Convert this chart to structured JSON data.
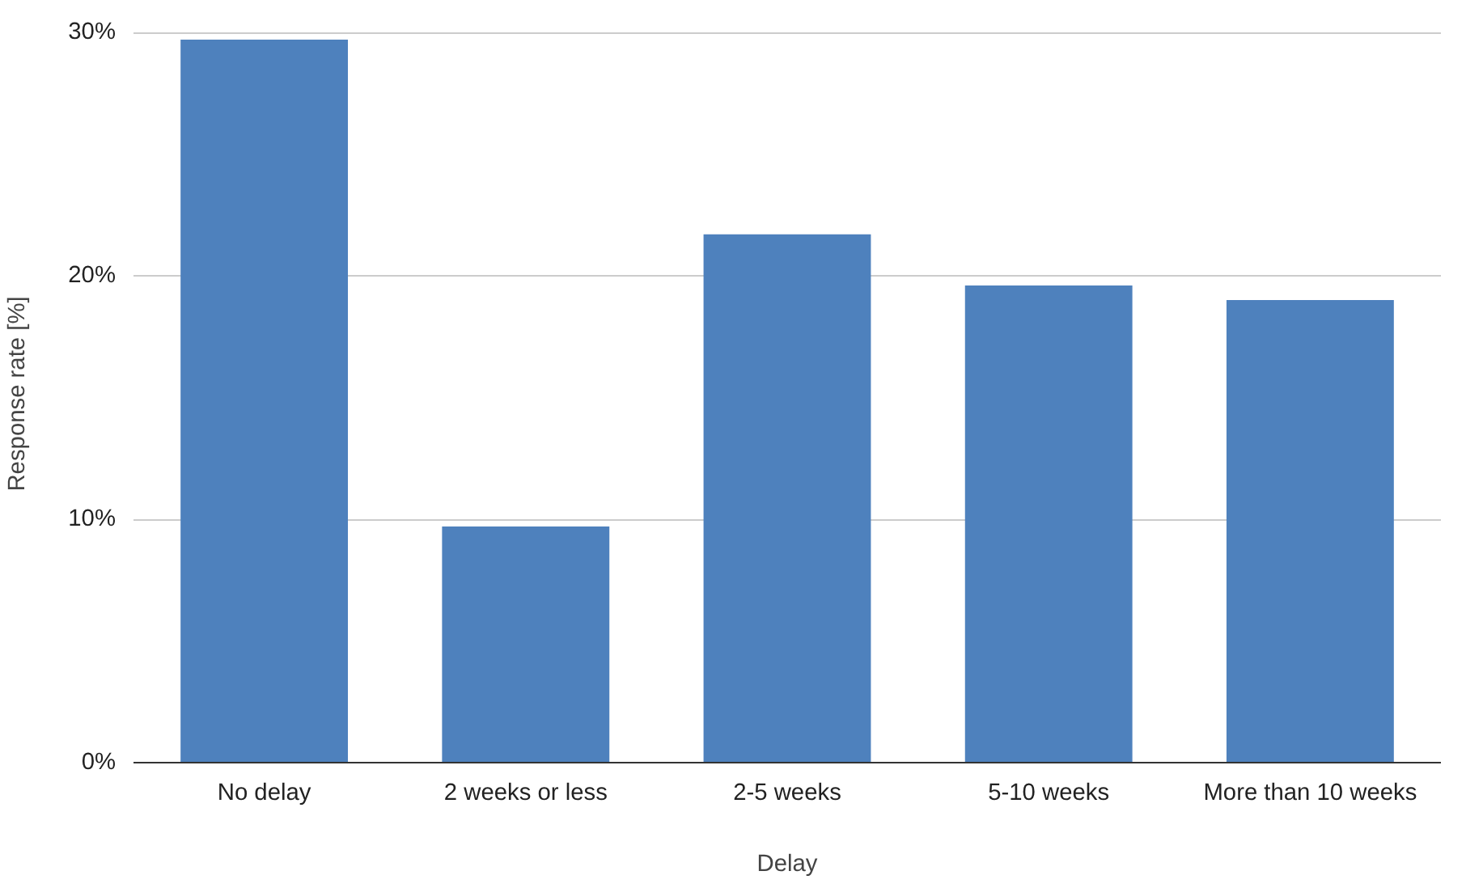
{
  "chart_data": {
    "type": "bar",
    "xlabel": "Delay",
    "ylabel": "Response rate [%]",
    "categories": [
      "No delay",
      "2 weeks or less",
      "2-5 weeks",
      "5-10 weeks",
      "More than 10 weeks"
    ],
    "values": [
      29.7,
      9.7,
      21.7,
      19.6,
      19.0
    ],
    "color": "#4e81bd",
    "ylim": [
      0,
      30
    ],
    "yticks": [
      {
        "value": 0,
        "label": "0%"
      },
      {
        "value": 10,
        "label": "10%"
      },
      {
        "value": 20,
        "label": "20%"
      },
      {
        "value": 30,
        "label": "30%"
      }
    ],
    "grid": "y"
  }
}
